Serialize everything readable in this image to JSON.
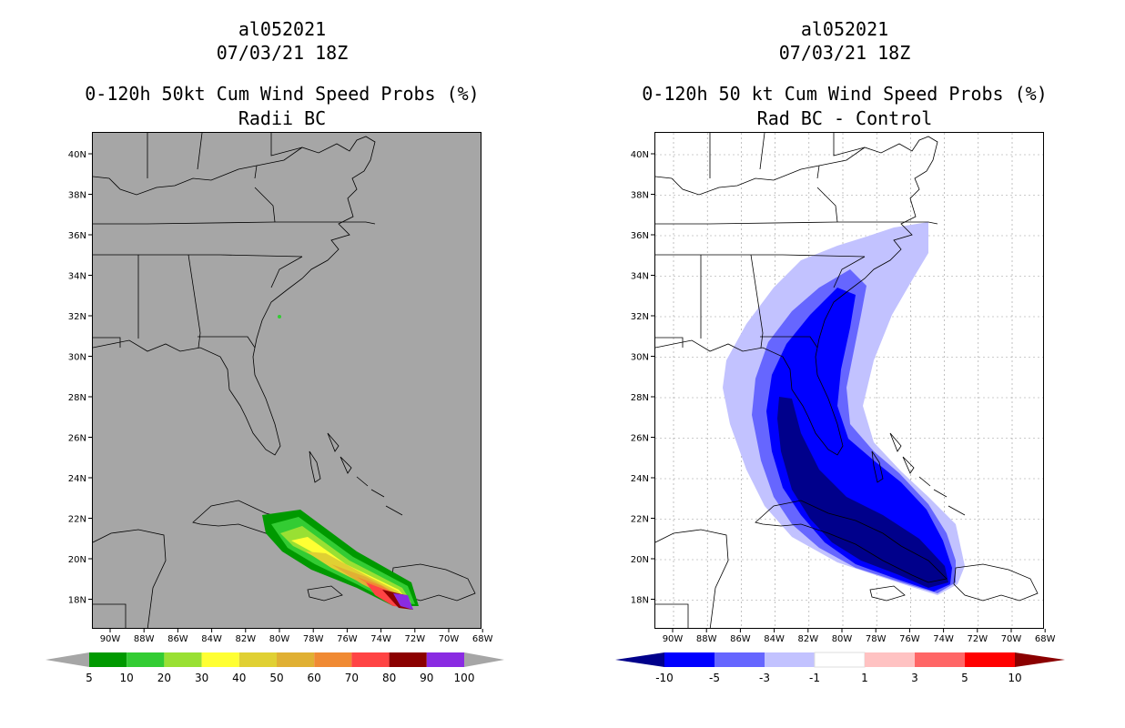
{
  "left_panel": {
    "storm_id": "al052021",
    "datetime": "07/03/21 18Z",
    "product": "0-120h 50kt Cum Wind Speed Probs (%)",
    "subtitle": "Radii BC",
    "colorbar_labels": [
      "5",
      "10",
      "20",
      "30",
      "40",
      "50",
      "60",
      "70",
      "80",
      "90",
      "100"
    ],
    "colorbar_colors": [
      "#009900",
      "#33cc33",
      "#99e033",
      "#ffff33",
      "#e0d033",
      "#e0b033",
      "#f08a33",
      "#ff4444",
      "#8b0000",
      "#8a2be2"
    ],
    "background_color": "#a6a6a6"
  },
  "right_panel": {
    "storm_id": "al052021",
    "datetime": "07/03/21 18Z",
    "product": "0-120h 50 kt Cum Wind Speed Probs (%)",
    "subtitle": "Rad BC - Control",
    "colorbar_labels": [
      "-10",
      "-5",
      "-3",
      "-1",
      "1",
      "3",
      "5",
      "10"
    ],
    "colorbar_colors": [
      "#0000ff",
      "#6666ff",
      "#c2c2ff",
      "#ffffff",
      "#ffc2c2",
      "#ff6666",
      "#ff0000"
    ],
    "end_colors": [
      "#00008b",
      "#8b0000"
    ],
    "background_color": "#ffffff"
  },
  "map_axes": {
    "lon_labels": [
      "90W",
      "88W",
      "86W",
      "84W",
      "82W",
      "80W",
      "78W",
      "76W",
      "74W",
      "72W",
      "70W",
      "68W"
    ],
    "lat_labels": [
      "40N",
      "38N",
      "36N",
      "34N",
      "32N",
      "30N",
      "28N",
      "26N",
      "24N",
      "22N",
      "20N",
      "18N"
    ]
  }
}
